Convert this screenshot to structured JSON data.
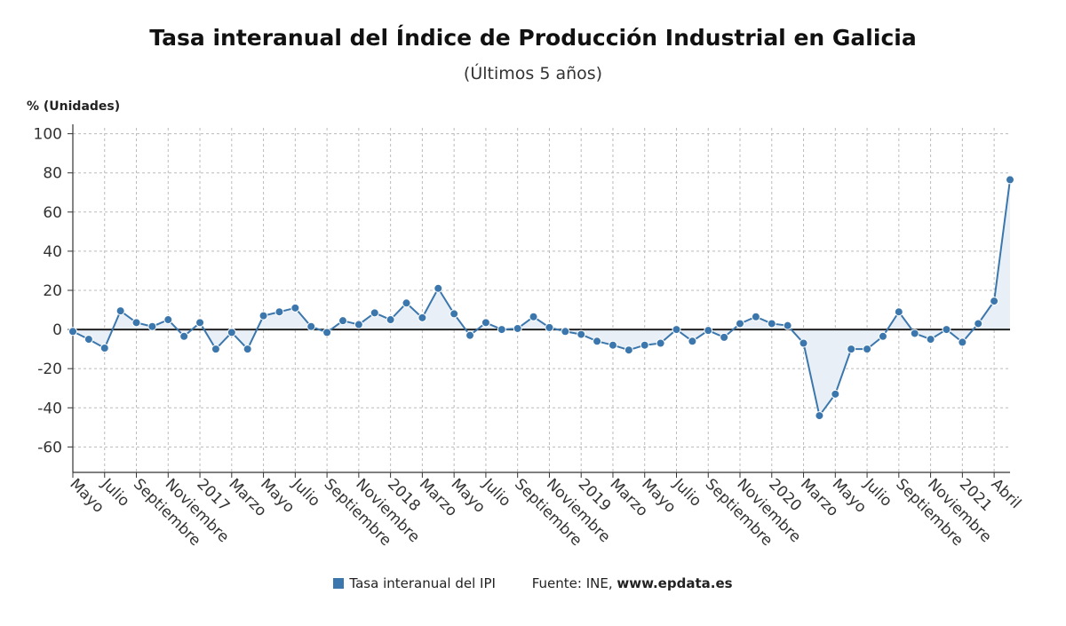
{
  "title": "Tasa interanual del Índice de Producción Industrial en Galicia",
  "subtitle": "(Últimos 5 años)",
  "legend": {
    "series_label": "Tasa interanual del IPI",
    "source_label": "Fuente: INE,",
    "source_site": "www.epdata.es"
  },
  "colors": {
    "line": "#3b77ad",
    "area": "#e8eff6",
    "zero": "#222222",
    "grid": "#bbbbbb"
  },
  "chart_data": {
    "type": "line",
    "ylabel": "% (Unidades)",
    "ylim": [
      -73,
      103
    ],
    "yticks": [
      100,
      80,
      60,
      40,
      20,
      0,
      -20,
      -40,
      -60
    ],
    "grid": true,
    "legend_position": "bottom",
    "x_tick_labels": [
      "Mayo",
      "Julio",
      "Septiembre",
      "Noviembre",
      "2017",
      "Marzo",
      "Mayo",
      "Julio",
      "Septiembre",
      "Noviembre",
      "2018",
      "Marzo",
      "Mayo",
      "Julio",
      "Septiembre",
      "Noviembre",
      "2019",
      "Marzo",
      "Mayo",
      "Julio",
      "Septiembre",
      "Noviembre",
      "2020",
      "Marzo",
      "Mayo",
      "Julio",
      "Septiembre",
      "Noviembre",
      "2021",
      "Abril"
    ],
    "series": [
      {
        "name": "Tasa interanual del IPI",
        "values": [
          -1,
          -5,
          -9.5,
          9.5,
          3.5,
          1.5,
          5,
          -3.5,
          3.5,
          -10,
          -1.5,
          -10,
          7,
          9,
          11,
          1.5,
          -1.5,
          4.5,
          2.5,
          8.5,
          5,
          13.5,
          6,
          21,
          8,
          -3,
          3.5,
          0,
          0.5,
          6.5,
          1,
          -1,
          -2.5,
          -6,
          -8,
          -10.5,
          -8,
          -7,
          0,
          -6,
          -0.5,
          -4,
          3,
          6.5,
          3,
          2,
          -7,
          -44,
          -33,
          -10,
          -10,
          -3.5,
          9,
          -2,
          -5,
          0,
          -6.5,
          3,
          14.5,
          76.5
        ]
      }
    ]
  }
}
